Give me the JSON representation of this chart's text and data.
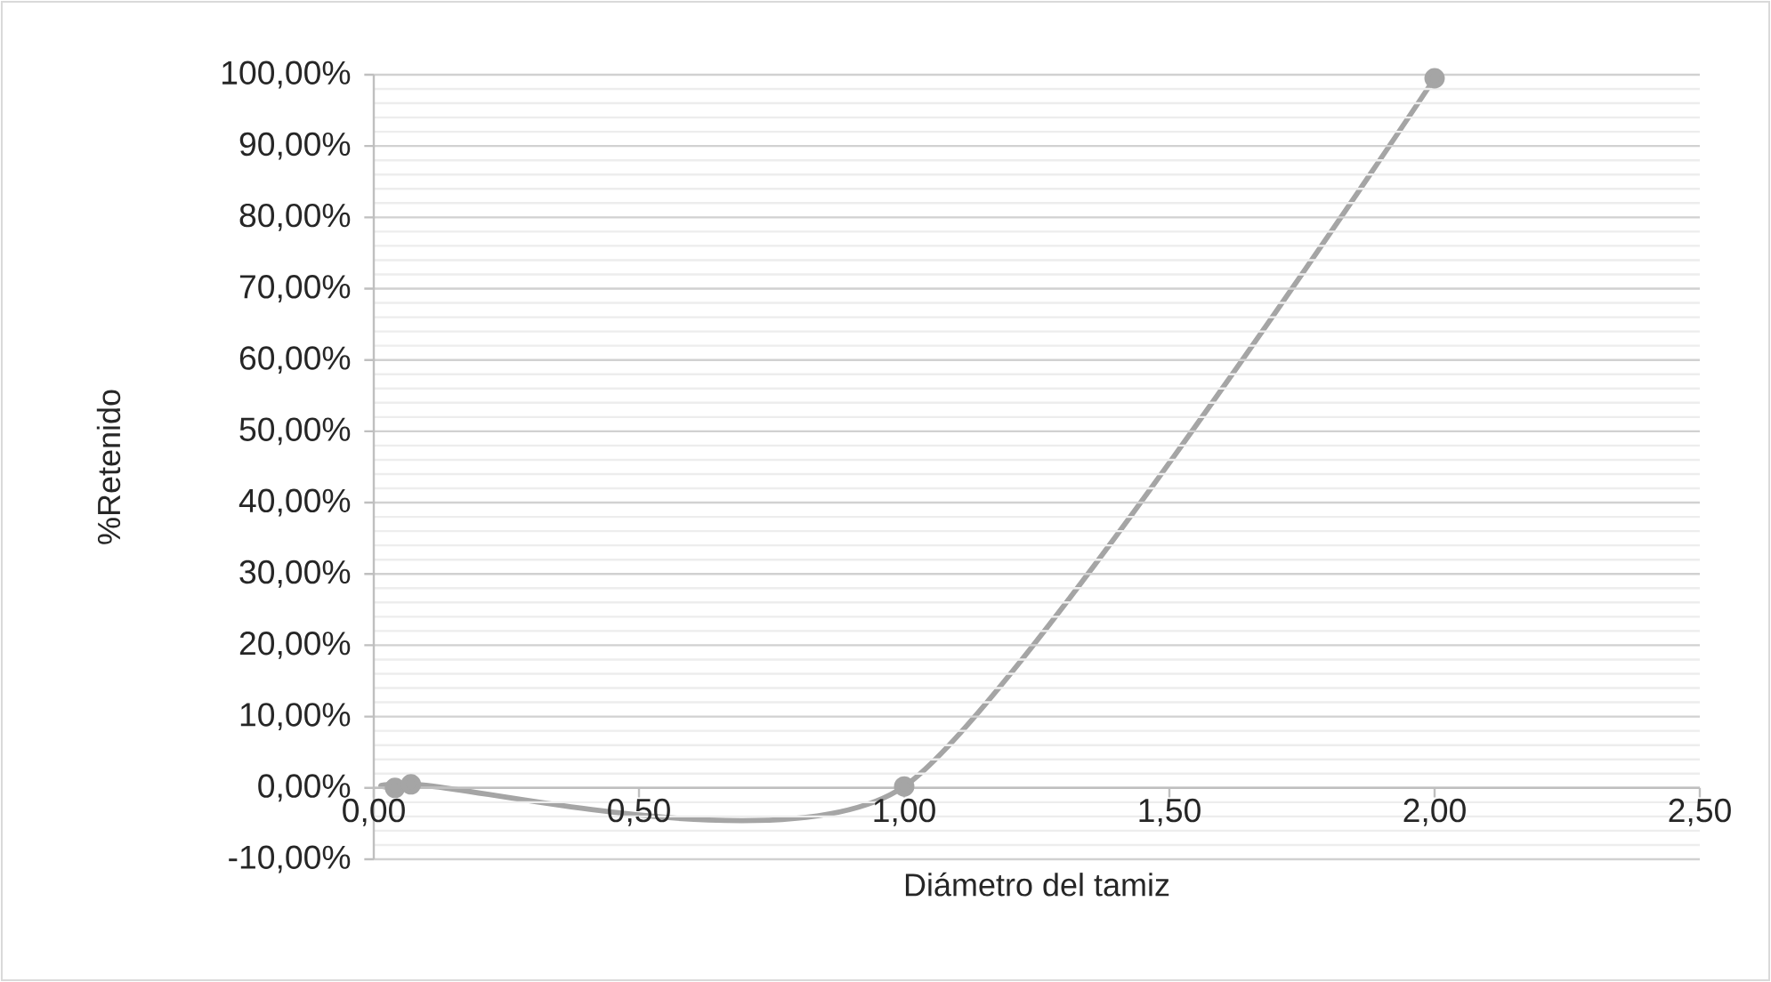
{
  "chart_data": {
    "type": "line",
    "xlabel": "Diámetro del tamiz",
    "ylabel": "%Retenido",
    "x": [
      0.04,
      0.07,
      1.0,
      2.0
    ],
    "series": [
      {
        "color": "#a5a5a5",
        "values": [
          0,
          0.5,
          0.2,
          99.5
        ]
      }
    ],
    "marker": "circle",
    "grid": "y",
    "xlim": [
      0,
      2.5
    ],
    "ylim": [
      -10,
      100
    ],
    "xticks": [
      {
        "value": 0,
        "label": "0,00"
      },
      {
        "value": 0.5,
        "label": "0,50"
      },
      {
        "value": 1,
        "label": "1,00"
      },
      {
        "value": 1.5,
        "label": "1,50"
      },
      {
        "value": 2,
        "label": "2,00"
      },
      {
        "value": 2.5,
        "label": "2,50"
      }
    ],
    "yticks": [
      {
        "value": -10,
        "label": "-10,00%"
      },
      {
        "value": 0,
        "label": "0,00%"
      },
      {
        "value": 10,
        "label": "10,00%"
      },
      {
        "value": 20,
        "label": "20,00%"
      },
      {
        "value": 30,
        "label": "30,00%"
      },
      {
        "value": 40,
        "label": "40,00%"
      },
      {
        "value": 50,
        "label": "50,00%"
      },
      {
        "value": 60,
        "label": "60,00%"
      },
      {
        "value": 70,
        "label": "70,00%"
      },
      {
        "value": 80,
        "label": "80,00%"
      },
      {
        "value": 90,
        "label": "90,00%"
      },
      {
        "value": 100,
        "label": "100,00%"
      }
    ]
  }
}
